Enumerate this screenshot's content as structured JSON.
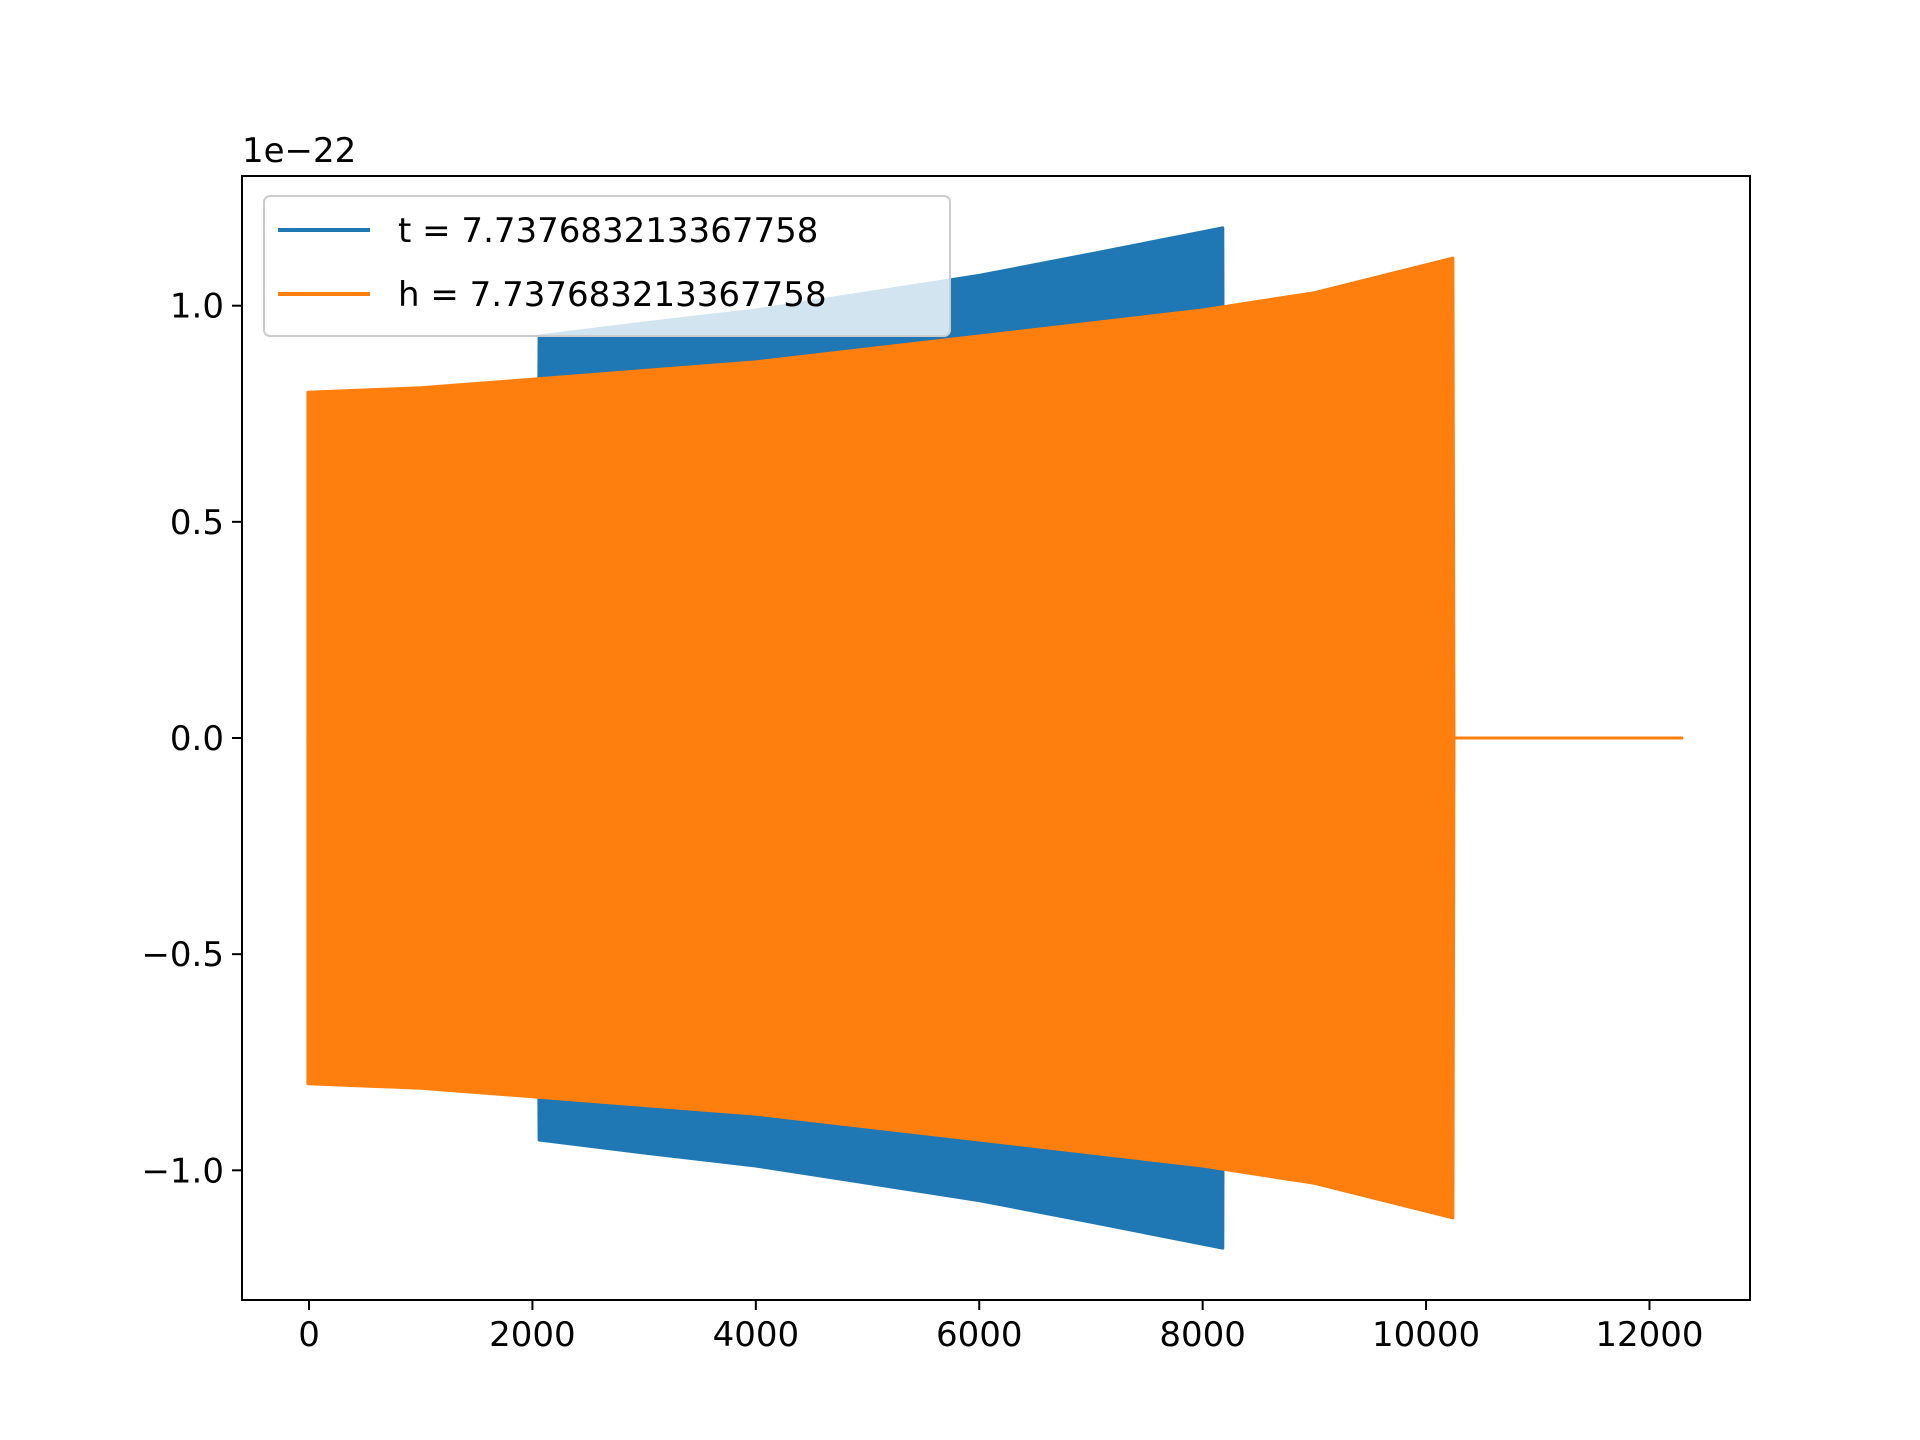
{
  "chart_data": {
    "type": "line",
    "title": "",
    "xlabel": "",
    "ylabel": "",
    "y_scale_label": "1e−22",
    "y_scale_factor": 1e-22,
    "xlim": [
      -600,
      12900
    ],
    "ylim": [
      -1.3,
      1.3
    ],
    "xticks": [
      0,
      2000,
      4000,
      6000,
      8000,
      10000,
      12000
    ],
    "xtick_labels": [
      "0",
      "2000",
      "4000",
      "6000",
      "8000",
      "10000",
      "12000"
    ],
    "yticks": [
      -1.0,
      -0.5,
      0.0,
      0.5,
      1.0
    ],
    "ytick_labels": [
      "−1.0",
      "−0.5",
      "0.0",
      "0.5",
      "1.0"
    ],
    "grid": false,
    "legend_position": "top-left",
    "series": [
      {
        "name": "t = 7.737683213367758",
        "color": "#1f77b4",
        "points": [
          {
            "x": -10,
            "y_min": 0.0,
            "y_max": 0.0
          },
          {
            "x": 2040,
            "y_min": 0.0,
            "y_max": 0.0
          },
          {
            "x": 2060,
            "y_min": -0.93,
            "y_max": 0.93
          },
          {
            "x": 3000,
            "y_min": -0.96,
            "y_max": 0.96
          },
          {
            "x": 4000,
            "y_min": -0.99,
            "y_max": 0.99
          },
          {
            "x": 5000,
            "y_min": -1.03,
            "y_max": 1.03
          },
          {
            "x": 6000,
            "y_min": -1.07,
            "y_max": 1.07
          },
          {
            "x": 7000,
            "y_min": -1.12,
            "y_max": 1.12
          },
          {
            "x": 8180,
            "y_min": -1.18,
            "y_max": 1.18
          },
          {
            "x": 8190,
            "y_min": 0.0,
            "y_max": 0.0
          }
        ]
      },
      {
        "name": "h = 7.737683213367758",
        "color": "#ff7f0e",
        "points": [
          {
            "x": -10,
            "y_min": -0.8,
            "y_max": 0.8
          },
          {
            "x": 1000,
            "y_min": -0.81,
            "y_max": 0.81
          },
          {
            "x": 2000,
            "y_min": -0.83,
            "y_max": 0.83
          },
          {
            "x": 3000,
            "y_min": -0.85,
            "y_max": 0.85
          },
          {
            "x": 4000,
            "y_min": -0.87,
            "y_max": 0.87
          },
          {
            "x": 5000,
            "y_min": -0.9,
            "y_max": 0.9
          },
          {
            "x": 6000,
            "y_min": -0.93,
            "y_max": 0.93
          },
          {
            "x": 7000,
            "y_min": -0.96,
            "y_max": 0.96
          },
          {
            "x": 8000,
            "y_min": -0.99,
            "y_max": 0.99
          },
          {
            "x": 9000,
            "y_min": -1.03,
            "y_max": 1.03
          },
          {
            "x": 10240,
            "y_min": -1.11,
            "y_max": 1.11
          },
          {
            "x": 10250,
            "y_min": 0.0,
            "y_max": 0.0
          },
          {
            "x": 12290,
            "y_min": 0.0,
            "y_max": 0.0
          }
        ]
      }
    ]
  }
}
